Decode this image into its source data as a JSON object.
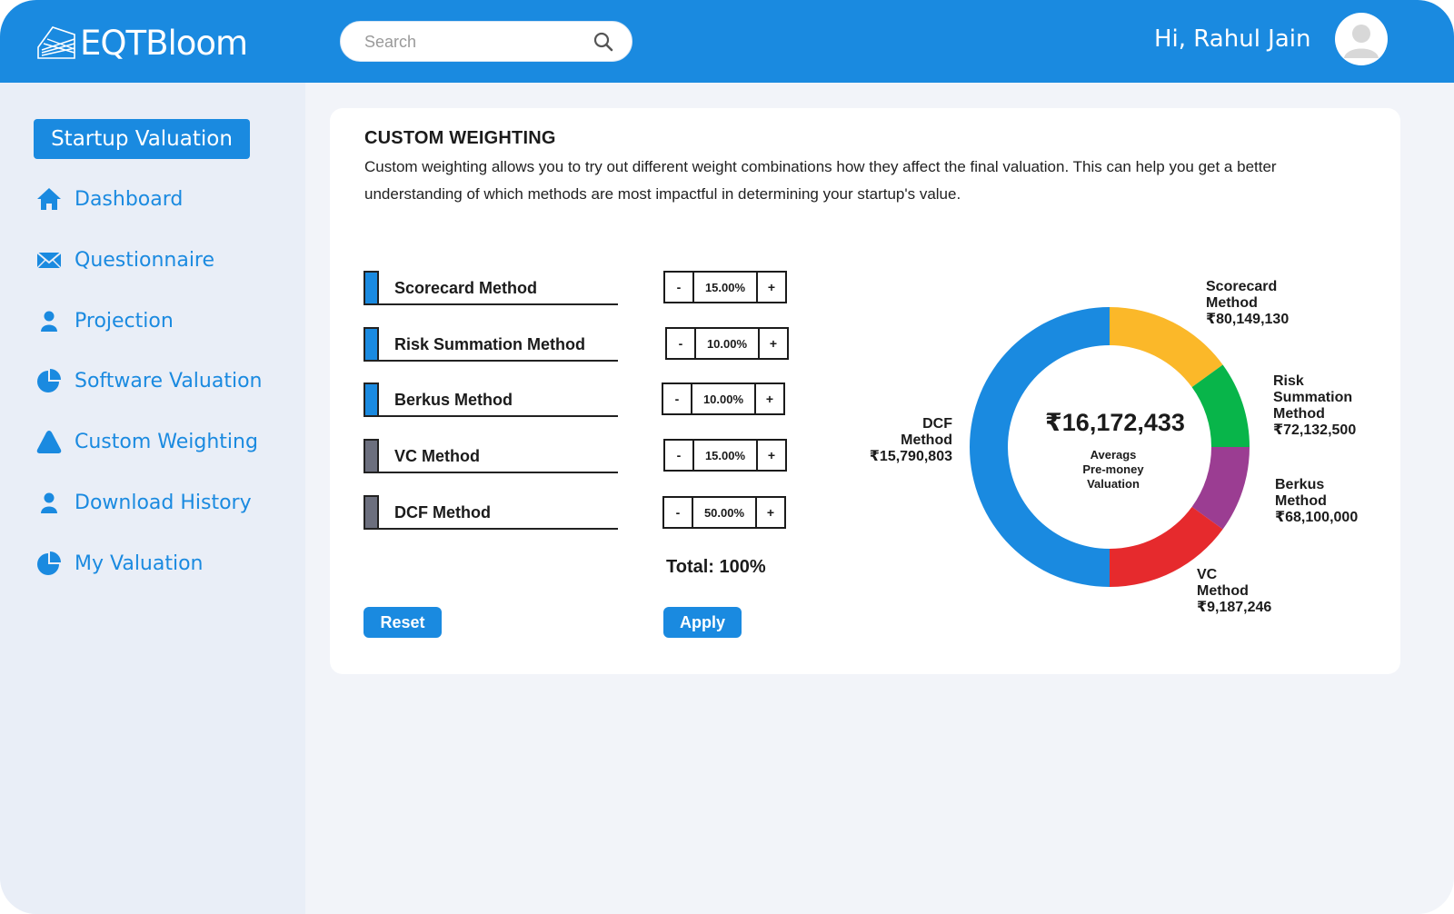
{
  "app": {
    "logo_text": "EQTBloom",
    "greeting": "Hi, Rahul Jain"
  },
  "search": {
    "placeholder": "Search"
  },
  "sidebar": {
    "active": "Startup Valuation",
    "items": [
      {
        "label": "Dashboard",
        "icon": "home-icon"
      },
      {
        "label": "Questionnaire",
        "icon": "envelope-icon"
      },
      {
        "label": "Projection",
        "icon": "user-icon"
      },
      {
        "label": "Software Valuation",
        "icon": "pie-icon"
      },
      {
        "label": "Custom Weighting",
        "icon": "triangle-icon"
      },
      {
        "label": "Download History",
        "icon": "user-icon"
      },
      {
        "label": "My Valuation",
        "icon": "pie-icon"
      }
    ]
  },
  "card": {
    "title": "CUSTOM WEIGHTING",
    "description": "Custom weighting allows you to try out different weight combinations how they affect the final valuation. This can help you get a better understanding of which methods are most impactful in determining your startup's value.",
    "methods": [
      {
        "name": "Scorecard Method",
        "weight": "15.00%",
        "swatch": "#1a8ae0"
      },
      {
        "name": "Risk Summation Method",
        "weight": "10.00%",
        "swatch": "#1a8ae0"
      },
      {
        "name": "Berkus Method",
        "weight": "10.00%",
        "swatch": "#1a8ae0"
      },
      {
        "name": "VC Method",
        "weight": "15.00%",
        "swatch": "#6c6f7e"
      },
      {
        "name": "DCF Method",
        "weight": "50.00%",
        "swatch": "#6c6f7e"
      }
    ],
    "minus_label": "-",
    "plus_label": "+",
    "total": "Total: 100%",
    "reset_label": "Reset",
    "apply_label": "Apply"
  },
  "chart_data": {
    "type": "pie",
    "center_value": "₹16,172,433",
    "center_label": [
      "Averags",
      "Pre-money",
      "Valuation"
    ],
    "slices": [
      {
        "name": "Scorecard Method",
        "label_lines": [
          "Scorecard",
          "Method"
        ],
        "amount": "₹80,149,130",
        "value": 15,
        "color": "#fbb829"
      },
      {
        "name": "Risk Summation Method",
        "label_lines": [
          "Risk",
          "Summation",
          "Method"
        ],
        "amount": "₹72,132,500",
        "value": 10,
        "color": "#08b54a"
      },
      {
        "name": "Berkus Method",
        "label_lines": [
          "Berkus",
          "Method"
        ],
        "amount": "₹68,100,000",
        "value": 10,
        "color": "#9b3d92"
      },
      {
        "name": "VC Method",
        "label_lines": [
          "VC",
          "Method"
        ],
        "amount": "₹9,187,246",
        "value": 15,
        "color": "#e62a2d"
      },
      {
        "name": "DCF Method",
        "label_lines": [
          "DCF",
          "Method"
        ],
        "amount": "₹15,790,803",
        "value": 50,
        "color": "#1a8ae0"
      }
    ]
  }
}
